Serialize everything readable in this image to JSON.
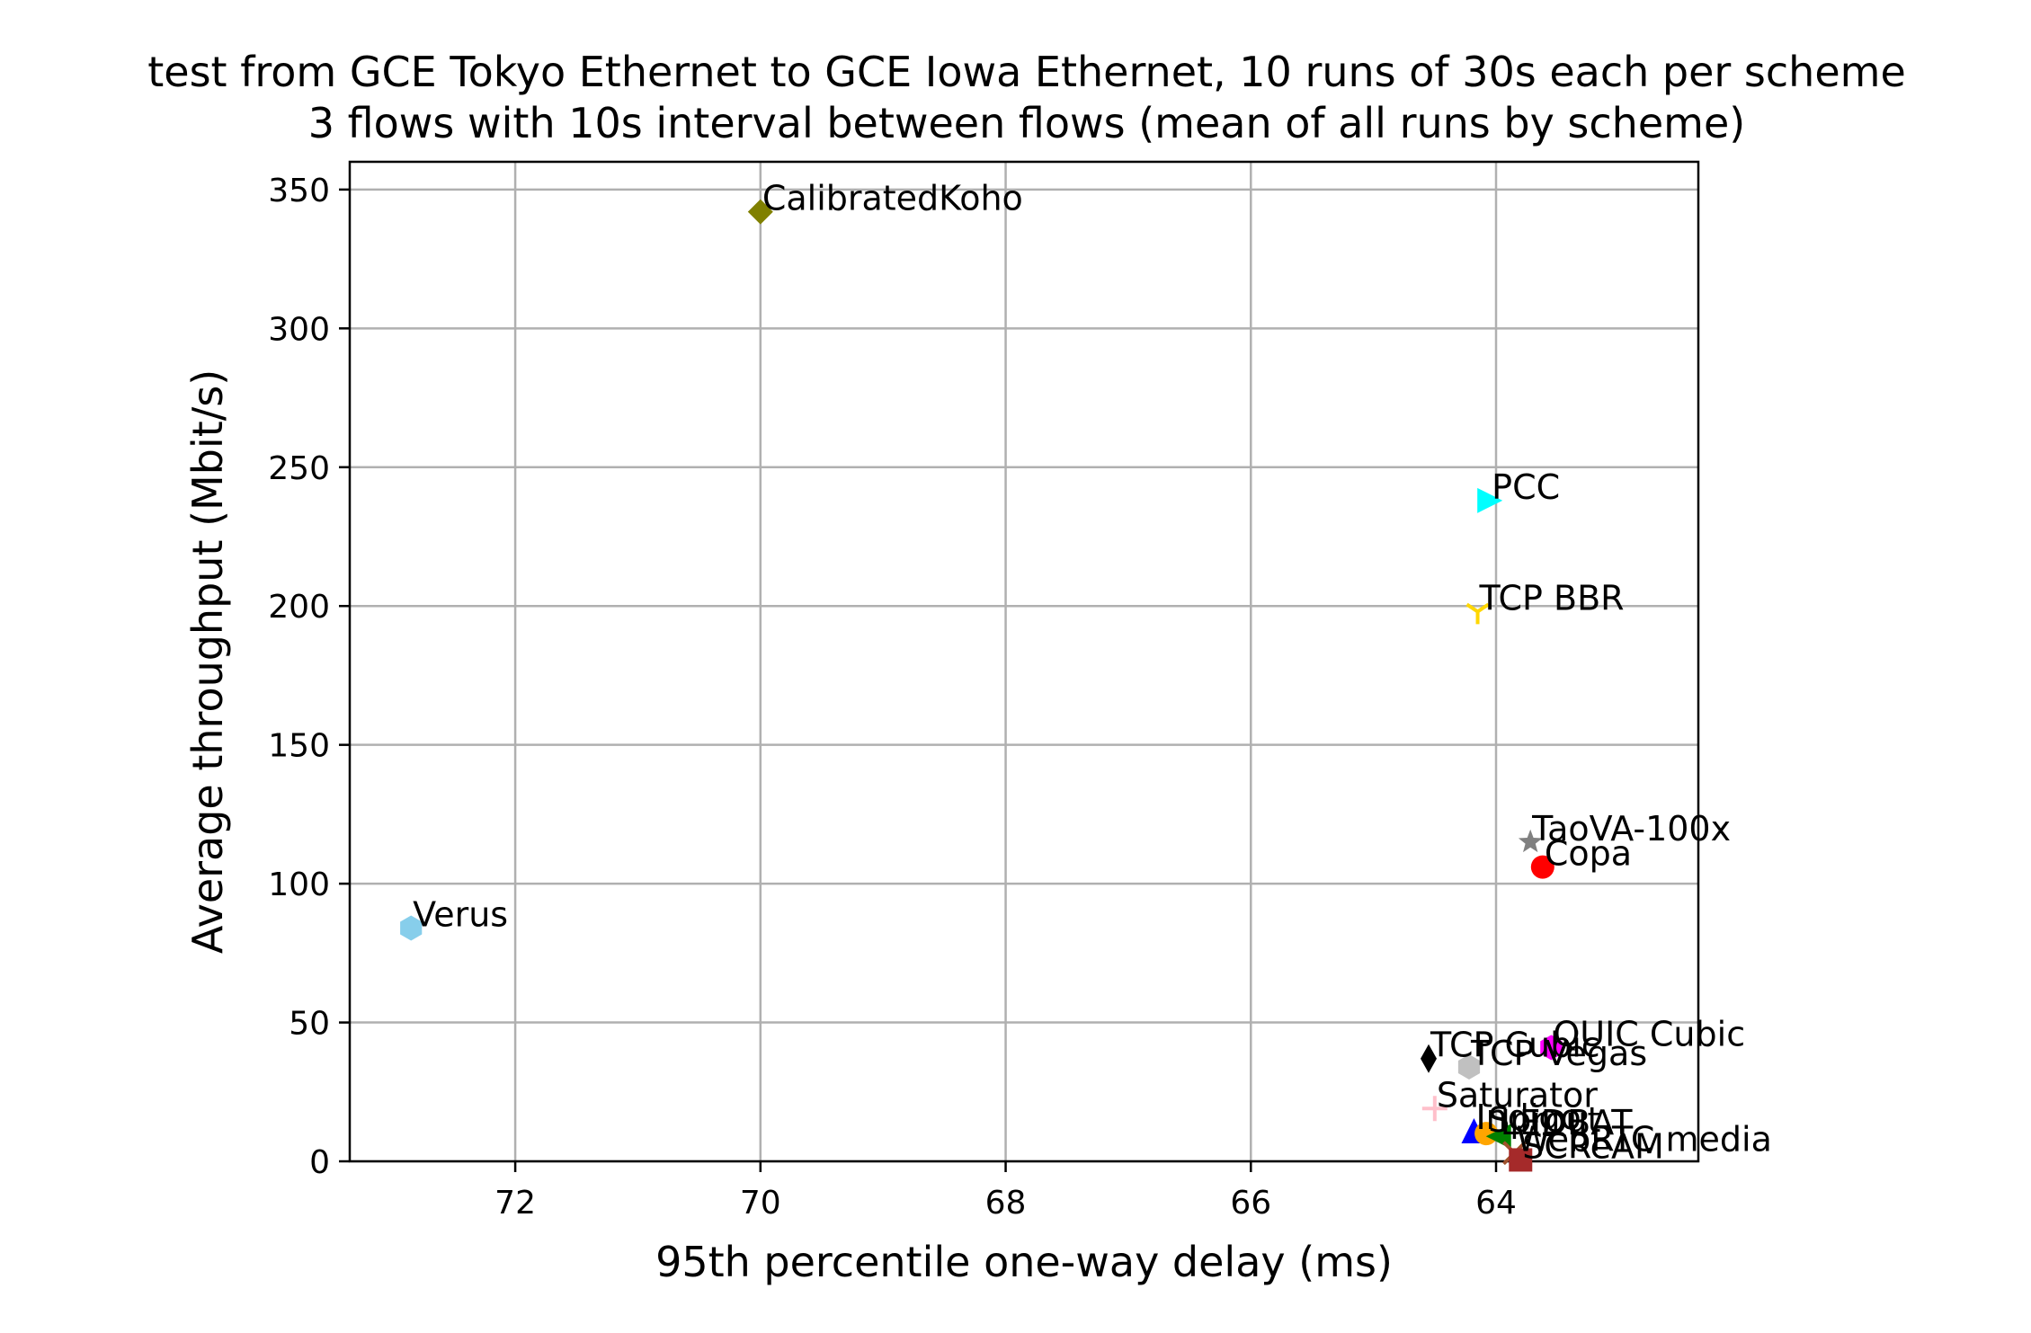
{
  "chart_data": {
    "type": "scatter",
    "title": "test from GCE Tokyo Ethernet to GCE Iowa Ethernet, 10 runs of 30s each per scheme",
    "subtitle": "3 flows with 10s interval between flows (mean of all runs by scheme)",
    "xlabel": "95th percentile one-way delay (ms)",
    "ylabel": "Average throughput (Mbit/s)",
    "x_inverted": true,
    "xlim": [
      73.35,
      62.35
    ],
    "ylim": [
      0,
      360
    ],
    "xticks": [
      72,
      70,
      68,
      66,
      64
    ],
    "yticks": [
      0,
      50,
      100,
      150,
      200,
      250,
      300,
      350
    ],
    "grid": true,
    "points": [
      {
        "label": "CalibratedKoho",
        "x": 70.0,
        "y": 342.0,
        "marker": "diamond",
        "color": "#808000"
      },
      {
        "label": "PCC",
        "x": 64.05,
        "y": 238.0,
        "marker": "triangle-right",
        "color": "#00ffff"
      },
      {
        "label": "TCP BBR",
        "x": 64.15,
        "y": 198.0,
        "marker": "tri-down",
        "color": "#ffd700"
      },
      {
        "label": "TaoVA-100x",
        "x": 63.72,
        "y": 115.0,
        "marker": "star",
        "color": "#808080"
      },
      {
        "label": "Copa",
        "x": 63.62,
        "y": 106.0,
        "marker": "circle",
        "color": "#ff0000"
      },
      {
        "label": "Verus",
        "x": 72.85,
        "y": 84.0,
        "marker": "hexagon",
        "color": "#87ceeb"
      },
      {
        "label": "QUIC Cubic",
        "x": 63.55,
        "y": 41.0,
        "marker": "hexagon",
        "color": "#ff00ff"
      },
      {
        "label": "TCP Cubic",
        "x": 64.55,
        "y": 37.0,
        "marker": "thin-diamond",
        "color": "#000000"
      },
      {
        "label": "TCP Vegas",
        "x": 64.22,
        "y": 34.0,
        "marker": "hexagon",
        "color": "#c0c0c0"
      },
      {
        "label": "Saturator",
        "x": 64.5,
        "y": 19.0,
        "marker": "plus",
        "color": "#ffc0cb"
      },
      {
        "label": "Indigo",
        "x": 64.18,
        "y": 11.0,
        "marker": "triangle-up",
        "color": "#0000ff"
      },
      {
        "label": "Sprout",
        "x": 64.08,
        "y": 10.0,
        "marker": "circle",
        "color": "#ffa500"
      },
      {
        "label": "LEDBAT",
        "x": 63.98,
        "y": 9.0,
        "marker": "triangle-left",
        "color": "#008000"
      },
      {
        "label": "WebRTC media",
        "x": 63.85,
        "y": 3.0,
        "marker": "x",
        "color": "#a0522d"
      },
      {
        "label": "SCReAM",
        "x": 63.8,
        "y": 0.5,
        "marker": "square",
        "color": "#a52a2a"
      }
    ]
  }
}
